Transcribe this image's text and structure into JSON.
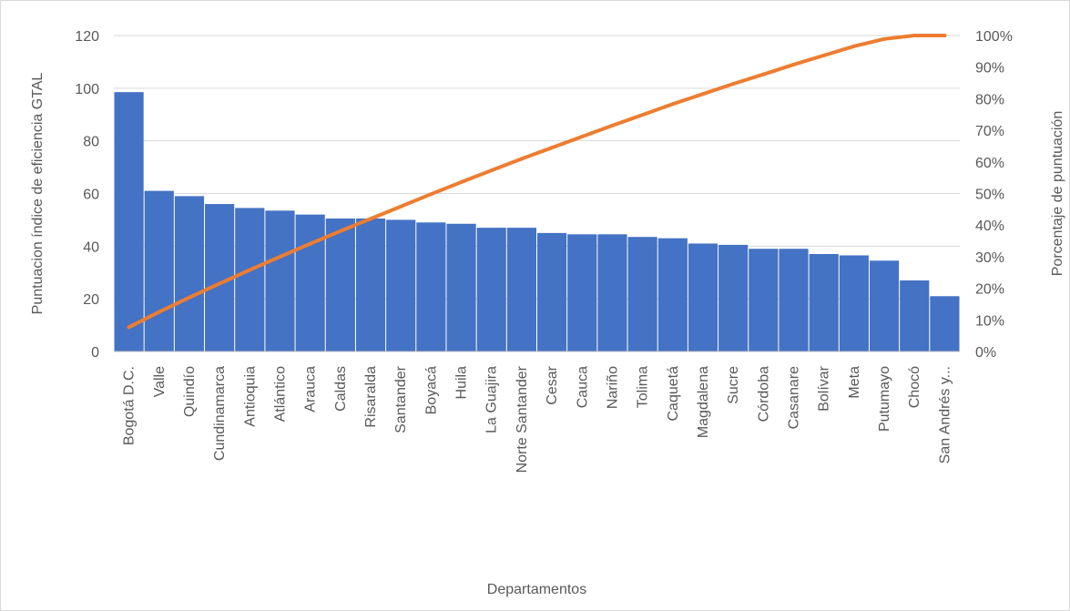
{
  "chart_data": {
    "type": "bar",
    "title": "",
    "xlabel": "Departamentos",
    "ylabel": "Puntuacion índice de eficiencia GTAL",
    "y2label": "Porcentaje de puntuación",
    "ylim": [
      0,
      120
    ],
    "y2lim": [
      0,
      100
    ],
    "yticks": [
      "0",
      "20",
      "40",
      "60",
      "80",
      "100",
      "120"
    ],
    "y2ticks": [
      "0%",
      "10%",
      "20%",
      "30%",
      "40%",
      "50%",
      "60%",
      "70%",
      "80%",
      "90%",
      "100%"
    ],
    "grid": true,
    "legend": "none",
    "categories": [
      "Bogotá D.C.",
      "Valle",
      "Quindío",
      "Cundinamarca",
      "Antioquia",
      "Atlántico",
      "Arauca",
      "Caldas",
      "Risaralda",
      "Santander",
      "Boyacá",
      "Huila",
      "La Guajira",
      "Norte Santander",
      "Cesar",
      "Cauca",
      "Nariño",
      "Tolima",
      "Caquetá",
      "Magdalena",
      "Sucre",
      "Córdoba",
      "Casanare",
      "Bolívar",
      "Meta",
      "Putumayo",
      "Chocó",
      "San Andrés y..."
    ],
    "series": [
      {
        "type": "bar",
        "axis": "primary",
        "color": "#4472c4",
        "values": [
          98.5,
          61,
          59,
          56,
          54.5,
          53.5,
          52,
          50.5,
          50.5,
          50,
          49,
          48.5,
          47,
          47,
          45,
          44.5,
          44.5,
          43.5,
          43,
          41,
          40.5,
          39,
          39,
          37,
          36.5,
          34.5,
          27,
          21
        ]
      },
      {
        "type": "line",
        "axis": "secondary",
        "color": "#ed7d31",
        "values": [
          7.7,
          12.5,
          17.1,
          21.5,
          25.8,
          30.0,
          34.1,
          38.1,
          42.0,
          45.9,
          49.8,
          53.6,
          57.3,
          61.0,
          64.5,
          68.0,
          71.5,
          74.9,
          78.3,
          81.5,
          84.7,
          87.7,
          90.8,
          93.7,
          96.6,
          98.9,
          100,
          100
        ]
      }
    ]
  }
}
